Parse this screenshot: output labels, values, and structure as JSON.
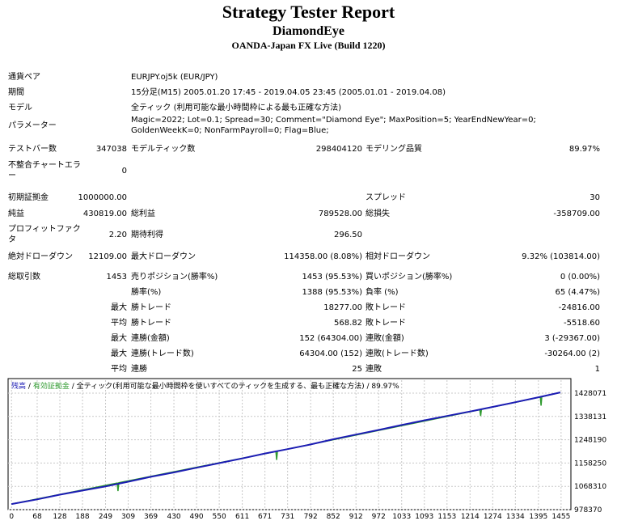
{
  "header": {
    "title": "Strategy Tester Report",
    "subtitle": "DiamondEye",
    "server": "OANDA-Japan FX Live (Build 1220)"
  },
  "table": {
    "rows": [
      {
        "l1": "通貨ペア",
        "text": "EURJPY.oj5k (EUR/JPY)"
      },
      {
        "l1": "期間",
        "text": "15分足(M15) 2005.01.20 17:45 - 2019.04.05 23:45 (2005.01.01 - 2019.04.08)"
      },
      {
        "l1": "モデル",
        "text": "全ティック (利用可能な最小時間枠による最も正確な方法)"
      },
      {
        "l1": "パラメーター",
        "text": "Magic=2022; Lot=0.1; Spread=30; Comment=\"Diamond Eye\"; MaxPosition=5; YearEndNewYear=0; GoldenWeekK=0; NonFarmPayroll=0; Flag=Blue;"
      },
      {
        "l1": "テストバー数",
        "v1": "347038",
        "l2": "モデルティック数",
        "v2": "298404120",
        "l3": "モデリング品質",
        "v3": "89.97%"
      },
      {
        "l1": "不整合チャートエラー",
        "v1": "0"
      },
      {
        "l1": "初期証拠金",
        "v1": "1000000.00",
        "l3": "スプレッド",
        "v3": "30"
      },
      {
        "l1": "純益",
        "v1": "430819.00",
        "l2": "総利益",
        "v2": "789528.00",
        "l3": "総損失",
        "v3": "-358709.00"
      },
      {
        "l1": "プロフィットファクタ",
        "v1": "2.20",
        "l2": "期待利得",
        "v2": "296.50"
      },
      {
        "l1": "絶対ドローダウン",
        "v1": "12109.00",
        "l2": "最大ドローダウン",
        "v2": "114358.00 (8.08%)",
        "l3": "相対ドローダウン",
        "v3": "9.32% (103814.00)"
      },
      {
        "l1": "総取引数",
        "v1": "1453",
        "l2": "売りポジション(勝率%)",
        "v2": "1453 (95.53%)",
        "l3": "買いポジション(勝率%)",
        "v3": "0 (0.00%)"
      },
      {
        "l2": "勝率(%)",
        "v2": "1388 (95.53%)",
        "l3": "負率 (%)",
        "v3": "65 (4.47%)"
      },
      {
        "v1": "最大",
        "l2": "勝トレード",
        "v2": "18277.00",
        "l3": "敗トレード",
        "v3": "-24816.00"
      },
      {
        "v1": "平均",
        "l2": "勝トレード",
        "v2": "568.82",
        "l3": "敗トレード",
        "v3": "-5518.60"
      },
      {
        "v1": "最大",
        "l2": "連勝(金額)",
        "v2": "152 (64304.00)",
        "l3": "連敗(金額)",
        "v3": "3 (-29367.00)"
      },
      {
        "v1": "最大",
        "l2": "連勝(トレード数)",
        "v2": "64304.00 (152)",
        "l3": "連敗(トレード数)",
        "v3": "-30264.00 (2)"
      },
      {
        "v1": "平均",
        "l2": "連勝",
        "v2": "25",
        "l3": "連敗",
        "v3": "1"
      }
    ]
  },
  "chart_data": {
    "type": "line",
    "series": [
      {
        "name": "有効証拠金",
        "color": "#2e9a2e",
        "x": [
          0,
          280,
          282,
          284,
          700,
          702,
          704,
          1240,
          1242,
          1244,
          1400,
          1402,
          1404,
          1453
        ],
        "values": [
          1000000,
          1081000,
          1050000,
          1082000,
          1203000,
          1170000,
          1204000,
          1364000,
          1340000,
          1365000,
          1413000,
          1380000,
          1414000,
          1430819
        ]
      },
      {
        "name": "残高",
        "color": "#1c1cb4",
        "x": [
          0,
          68,
          128,
          188,
          249,
          309,
          369,
          430,
          490,
          550,
          611,
          671,
          731,
          792,
          852,
          912,
          972,
          1033,
          1093,
          1153,
          1214,
          1274,
          1334,
          1395,
          1453
        ],
        "values": [
          1000000,
          1018000,
          1036000,
          1052000,
          1068000,
          1086000,
          1105000,
          1122000,
          1140000,
          1158000,
          1176000,
          1195000,
          1212000,
          1230000,
          1250000,
          1268000,
          1286000,
          1305000,
          1323000,
          1340000,
          1357000,
          1375000,
          1393000,
          1412000,
          1430819
        ]
      }
    ],
    "separator": "/",
    "model_label": "全ティック(利用可能な最小時間枠を使いすべてのティックを生成する、最も正確な方法)",
    "quality_label": "89.97%",
    "xlim": [
      -9,
      1481
    ],
    "ylim": [
      978370,
      1478000
    ],
    "xticks": [
      0,
      68,
      128,
      188,
      249,
      309,
      369,
      430,
      490,
      550,
      611,
      671,
      731,
      792,
      852,
      912,
      972,
      1033,
      1093,
      1153,
      1214,
      1274,
      1334,
      1395,
      1455
    ],
    "yticks": [
      978370,
      1068310,
      1158250,
      1248190,
      1338131,
      1428071
    ],
    "grid": true
  }
}
